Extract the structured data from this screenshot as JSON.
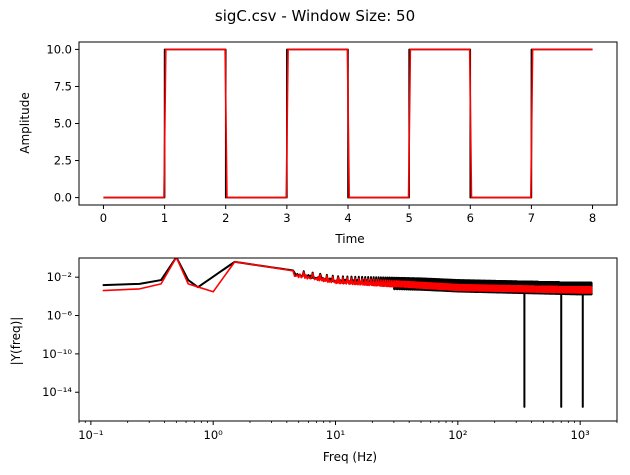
{
  "figure": {
    "title": "sigC.csv - Window Size: 50"
  },
  "colors": {
    "original": "#000000",
    "filtered": "#ff0000",
    "axes": "#000000",
    "background": "#ffffff"
  },
  "chart_data": [
    {
      "type": "line",
      "title": "",
      "xlabel": "Time",
      "ylabel": "Amplitude",
      "xlim": [
        -0.4,
        8.4
      ],
      "ylim": [
        -0.5,
        10.5
      ],
      "xticks": [
        0,
        1,
        2,
        3,
        4,
        5,
        6,
        7,
        8
      ],
      "xtick_labels": [
        "0",
        "1",
        "2",
        "3",
        "4",
        "5",
        "6",
        "7",
        "8"
      ],
      "yticks": [
        0,
        2.5,
        5,
        7.5,
        10
      ],
      "ytick_labels": [
        "0.0",
        "2.5",
        "5.0",
        "7.5",
        "10.0"
      ],
      "grid": false,
      "series": [
        {
          "color": "#000000",
          "x": [
            0,
            1,
            1,
            2,
            2,
            3,
            3,
            4,
            4,
            5,
            5,
            6,
            6,
            7,
            7,
            8
          ],
          "y": [
            0,
            0,
            10,
            10,
            0,
            0,
            10,
            10,
            0,
            0,
            10,
            10,
            0,
            0,
            10,
            10
          ]
        },
        {
          "color": "#ff0000",
          "x": [
            0,
            0.99,
            1.02,
            1.99,
            2.02,
            2.99,
            3.02,
            3.99,
            4.02,
            4.99,
            5.02,
            5.99,
            6.02,
            6.99,
            7.02,
            8
          ],
          "y": [
            0,
            0,
            10,
            10,
            0,
            0,
            10,
            10,
            0,
            0,
            10,
            10,
            0,
            0,
            10,
            10
          ]
        }
      ]
    },
    {
      "type": "line",
      "title": "",
      "xlabel": "Freq (Hz)",
      "ylabel": "|Y(freq)|",
      "xscale": "log",
      "yscale": "log",
      "xlim": [
        0.08,
        2000
      ],
      "ylim": [
        1e-17,
        1
      ],
      "xticks": [
        0.1,
        1,
        10,
        100,
        1000
      ],
      "xtick_labels": [
        "10⁻¹",
        "10⁰",
        "10¹",
        "10²",
        "10³"
      ],
      "yticks": [
        1e-14,
        1e-10,
        1e-06,
        0.01
      ],
      "ytick_labels": [
        "10⁻¹⁴",
        "10⁻¹⁰",
        "10⁻⁶",
        "10⁻²"
      ],
      "grid": false,
      "series": [
        {
          "color": "#000000",
          "peaks": [
            {
              "x": 0.125,
              "y": 0.0015
            },
            {
              "x": 0.25,
              "y": 0.002
            },
            {
              "x": 0.375,
              "y": 0.005
            },
            {
              "x": 0.5,
              "y": 1.2
            },
            {
              "x": 0.625,
              "y": 0.005
            },
            {
              "x": 0.75,
              "y": 0.0009
            },
            {
              "x": 1.5,
              "y": 0.4
            },
            {
              "x": 2.5,
              "y": 0.15
            },
            {
              "x": 3.5,
              "y": 0.08
            },
            {
              "x": 4.5,
              "y": 0.05
            },
            {
              "x": 10,
              "y": 0.01
            },
            {
              "x": 50,
              "y": 0.006
            },
            {
              "x": 100,
              "y": 0.004
            },
            {
              "x": 1000,
              "y": 0.002
            }
          ],
          "dips": [
            {
              "x": 350,
              "y": 3e-16
            },
            {
              "x": 700,
              "y": 3e-16
            },
            {
              "x": 1050,
              "y": 3e-16
            }
          ]
        },
        {
          "color": "#ff0000",
          "peaks": [
            {
              "x": 0.125,
              "y": 0.0004
            },
            {
              "x": 0.25,
              "y": 0.0006
            },
            {
              "x": 0.375,
              "y": 0.002
            },
            {
              "x": 0.5,
              "y": 1.2
            },
            {
              "x": 0.625,
              "y": 0.002
            },
            {
              "x": 1.0,
              "y": 0.0003
            },
            {
              "x": 1.5,
              "y": 0.4
            },
            {
              "x": 2.5,
              "y": 0.15
            },
            {
              "x": 10,
              "y": 0.009
            },
            {
              "x": 100,
              "y": 0.0015
            },
            {
              "x": 1000,
              "y": 0.0008
            }
          ]
        }
      ]
    }
  ]
}
